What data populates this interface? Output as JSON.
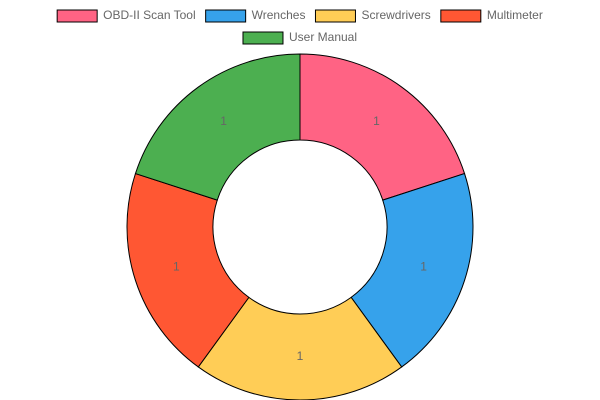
{
  "chart_data": {
    "type": "doughnut",
    "categories": [
      "OBD-II Scan Tool",
      "Wrenches",
      "Screwdrivers",
      "Multimeter",
      "User Manual"
    ],
    "values": [
      1,
      1,
      1,
      1,
      1
    ],
    "colors": [
      "#ff6384",
      "#36a2eb",
      "#ffcd56",
      "#ff5733",
      "#4caf50"
    ],
    "legend": "top"
  }
}
